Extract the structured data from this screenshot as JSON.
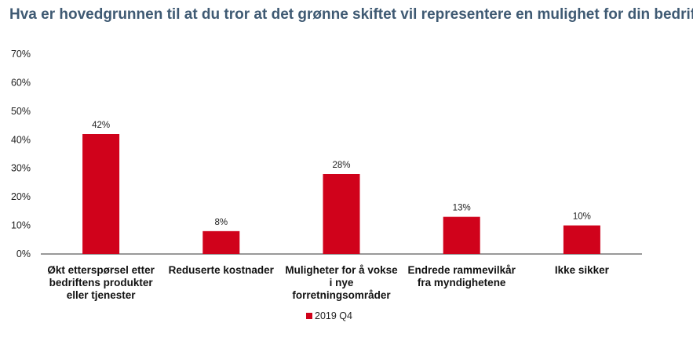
{
  "chart_data": {
    "type": "bar",
    "title": "Hva er hovedgrunnen til at du tror at det grønne skiftet vil representere en mulighet for din bedrift?",
    "categories": [
      [
        "Økt etterspørsel etter",
        "bedriftens produkter",
        "eller tjenester"
      ],
      [
        "Reduserte kostnader"
      ],
      [
        "Muligheter for å vokse",
        "i nye",
        "forretningsområder"
      ],
      [
        "Endrede rammevilkår",
        "fra myndighetene"
      ],
      [
        "Ikke sikker"
      ]
    ],
    "series": [
      {
        "name": "2019 Q4",
        "values": [
          42,
          8,
          28,
          13,
          10
        ],
        "color": "#d0021b"
      }
    ],
    "data_labels": [
      "42%",
      "8%",
      "28%",
      "13%",
      "10%"
    ],
    "yticks": [
      "0%",
      "10%",
      "20%",
      "30%",
      "40%",
      "50%",
      "60%",
      "70%"
    ],
    "ylim": [
      0,
      70
    ],
    "grid": false,
    "legend_position": "bottom-center"
  }
}
